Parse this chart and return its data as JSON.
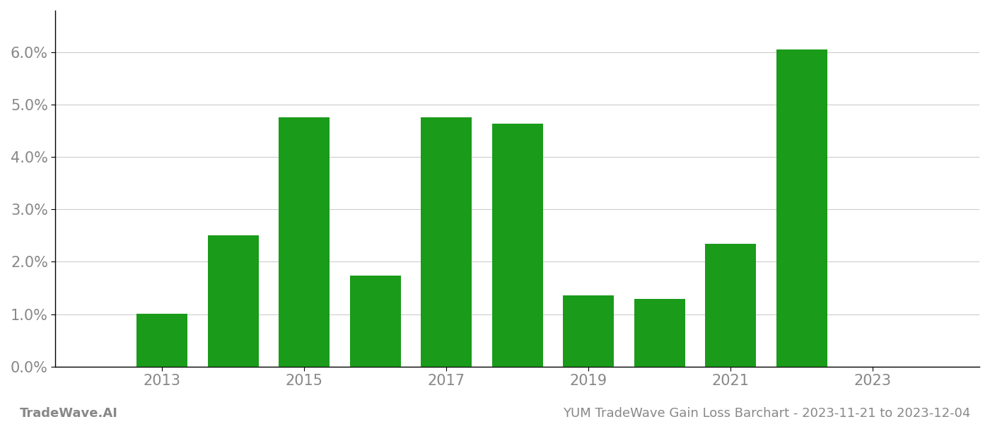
{
  "years": [
    2013,
    2014,
    2015,
    2016,
    2017,
    2018,
    2019,
    2020,
    2021,
    2022
  ],
  "values": [
    0.01005,
    0.02505,
    0.04765,
    0.01735,
    0.04755,
    0.04645,
    0.01355,
    0.01295,
    0.02345,
    0.06055
  ],
  "bar_color": "#1a9b1a",
  "background_color": "#ffffff",
  "grid_color": "#cccccc",
  "axis_color": "#aaaaaa",
  "spine_color": "#000000",
  "tick_label_color": "#888888",
  "yticks": [
    0.0,
    0.01,
    0.02,
    0.03,
    0.04,
    0.05,
    0.06
  ],
  "ytick_labels": [
    "0.0%",
    "1.0%",
    "2.0%",
    "3.0%",
    "4.0%",
    "5.0%",
    "6.0%"
  ],
  "xtick_positions": [
    2013,
    2015,
    2017,
    2019,
    2021,
    2023
  ],
  "xtick_labels": [
    "2013",
    "2015",
    "2017",
    "2019",
    "2021",
    "2023"
  ],
  "xlim": [
    2011.5,
    2024.5
  ],
  "ylim": [
    0.0,
    0.068
  ],
  "footer_left": "TradeWave.AI",
  "footer_right": "YUM TradeWave Gain Loss Barchart - 2023-11-21 to 2023-12-04",
  "footer_color": "#888888",
  "tick_fontsize": 15,
  "footer_fontsize": 13,
  "bar_width": 0.72
}
